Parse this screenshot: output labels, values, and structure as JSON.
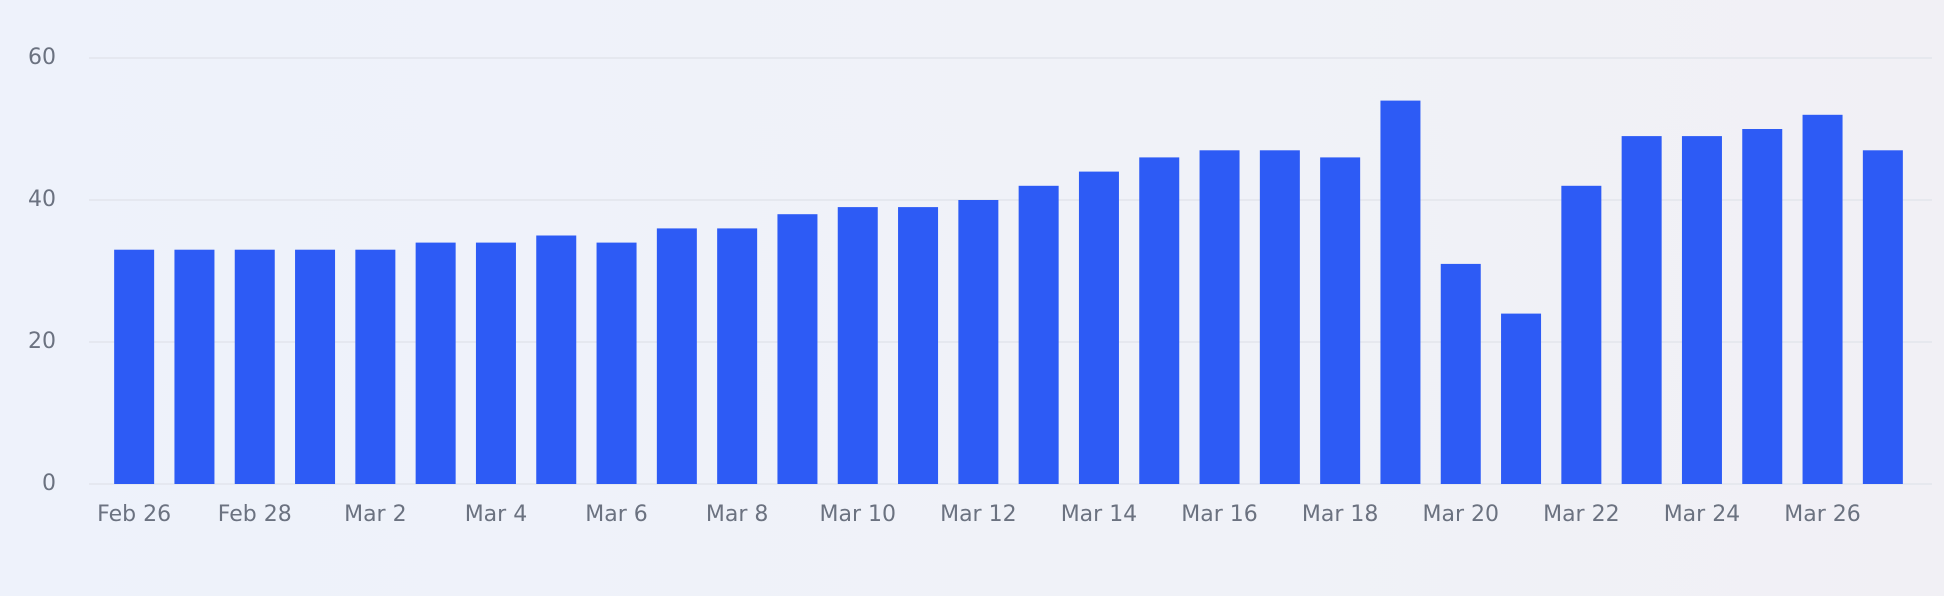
{
  "chart_data": {
    "type": "bar",
    "categories": [
      "Feb 26",
      null,
      "Feb 28",
      null,
      "Mar 2",
      null,
      "Mar 4",
      null,
      "Mar 6",
      null,
      "Mar 8",
      null,
      "Mar 10",
      null,
      "Mar 12",
      null,
      "Mar 14",
      null,
      "Mar 16",
      null,
      "Mar 18",
      null,
      "Mar 20",
      null,
      "Mar 22",
      null,
      "Mar 24",
      null,
      "Mar 26",
      null
    ],
    "values": [
      33,
      33,
      33,
      33,
      33,
      34,
      34,
      35,
      34,
      36,
      36,
      38,
      39,
      39,
      40,
      42,
      44,
      46,
      47,
      47,
      46,
      54,
      31,
      24,
      42,
      49,
      49,
      50,
      52,
      47
    ],
    "color": "#2d5bf5",
    "ylim": [
      0,
      60
    ],
    "yticks": [
      0,
      20,
      40,
      60
    ],
    "grid": true
  }
}
